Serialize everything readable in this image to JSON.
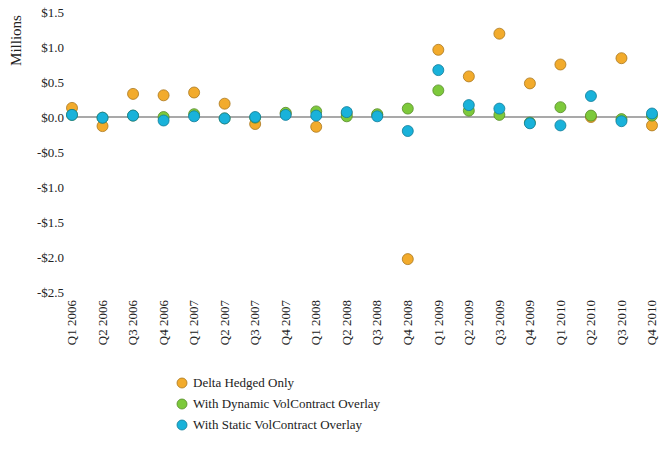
{
  "chart_data": {
    "type": "scatter",
    "y_label": "Millions",
    "categories": [
      "Q1 2006",
      "Q2 2006",
      "Q3 2006",
      "Q4 2006",
      "Q1 2007",
      "Q2 2007",
      "Q3 2007",
      "Q4 2007",
      "Q1 2008",
      "Q2 2008",
      "Q3 2008",
      "Q4 2008",
      "Q1 2009",
      "Q2 2009",
      "Q3 2009",
      "Q4 2009",
      "Q1 2010",
      "Q2 2010",
      "Q3 2010",
      "Q4 2010"
    ],
    "series": [
      {
        "name": "Delta Hedged Only",
        "color": "#f2ab2c",
        "values": [
          0.13,
          -0.13,
          0.33,
          0.31,
          0.35,
          0.19,
          -0.1,
          0.05,
          -0.14,
          0.05,
          0.03,
          -2.03,
          0.96,
          0.58,
          1.19,
          0.48,
          0.75,
          0.0,
          0.84,
          -0.12
        ]
      },
      {
        "name": "With Dynamic VolContract Overlay",
        "color": "#7dc93b",
        "values": [
          0.03,
          -0.01,
          0.02,
          0.0,
          0.04,
          -0.02,
          -0.01,
          0.06,
          0.08,
          0.01,
          0.04,
          0.12,
          0.38,
          0.09,
          0.03,
          -0.08,
          0.14,
          0.02,
          -0.03,
          0.02
        ]
      },
      {
        "name": "With Static VolContract Overlay",
        "color": "#19b2da",
        "values": [
          0.03,
          -0.01,
          0.02,
          -0.05,
          0.01,
          -0.02,
          0.0,
          0.03,
          0.02,
          0.07,
          0.01,
          -0.2,
          0.67,
          0.17,
          0.12,
          -0.09,
          -0.12,
          0.3,
          -0.06,
          0.05
        ]
      }
    ],
    "ylim": [
      -2.5,
      1.5
    ],
    "yticks": [
      {
        "value": -2.5,
        "label": "-$2.5"
      },
      {
        "value": -2.0,
        "label": "-$2.0"
      },
      {
        "value": -1.5,
        "label": "-$1.5"
      },
      {
        "value": -1.0,
        "label": "-$1.0"
      },
      {
        "value": -0.5,
        "label": "-$0.5"
      },
      {
        "value": 0,
        "label": "$0.0"
      },
      {
        "value": 0.5,
        "label": "$0.5"
      },
      {
        "value": 1.0,
        "label": "$1.0"
      },
      {
        "value": 1.5,
        "label": "$1.5"
      }
    ],
    "grid": false,
    "legend": "bottom",
    "marker": "circle"
  }
}
